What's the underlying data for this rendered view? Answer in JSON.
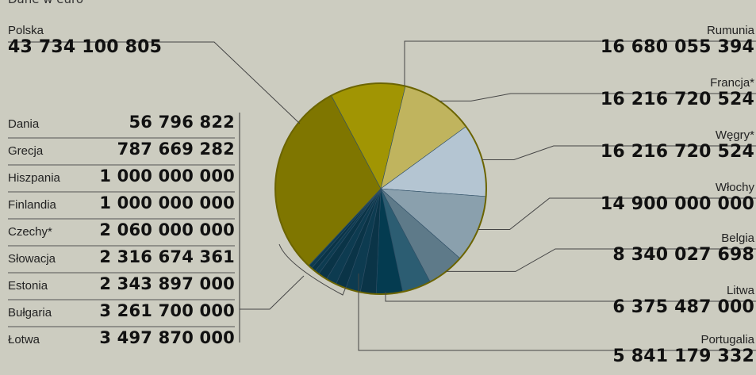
{
  "unit_note": "Dane w euro",
  "chart_data": {
    "type": "pie",
    "slices": [
      {
        "label": "Rumunia",
        "value": 16680055394,
        "display": "16 680 055 394",
        "color": "#a19503"
      },
      {
        "label": "Francja*",
        "value": 16216720524,
        "display": "16 216 720 524",
        "color": "#c0b45e"
      },
      {
        "label": "Węgry*",
        "value": 16216720524,
        "display": "16 216 720 524",
        "color": "#b4c5d2"
      },
      {
        "label": "Włochy",
        "value": 14900000000,
        "display": "14 900 000 000",
        "color": "#8aa0ad"
      },
      {
        "label": "Belgia",
        "value": 8340027698,
        "display": "8 340 027 698",
        "color": "#5e7a89"
      },
      {
        "label": "Litwa",
        "value": 6375487000,
        "display": "6 375 487 000",
        "color": "#2c5d72"
      },
      {
        "label": "Portugalia",
        "value": 5841179332,
        "display": "5 841 179 332",
        "color": "#043b50"
      },
      {
        "label": "Łotwa",
        "value": 3497870000,
        "display": "3 497 870 000",
        "color": "#0a3447"
      },
      {
        "label": "Bułgaria",
        "value": 3261700000,
        "display": "3 261 700 000",
        "color": "#0d3b50"
      },
      {
        "label": "Estonia",
        "value": 2343897000,
        "display": "2 343 897 000",
        "color": "#0a3447"
      },
      {
        "label": "Słowacja",
        "value": 2316674361,
        "display": "2 316 674 361",
        "color": "#0d3b50"
      },
      {
        "label": "Czechy*",
        "value": 2060000000,
        "display": "2 060 000 000",
        "color": "#0a3447"
      },
      {
        "label": "Finlandia",
        "value": 1000000000,
        "display": "1 000 000 000",
        "color": "#0d3b50"
      },
      {
        "label": "Hiszpania",
        "value": 1000000000,
        "display": "1 000 000 000",
        "color": "#0a3447"
      },
      {
        "label": "Grecja",
        "value": 787669282,
        "display": "787 669 282",
        "color": "#0d3b50"
      },
      {
        "label": "Dania",
        "value": 56796822,
        "display": "56 796 822",
        "color": "#0a3447"
      },
      {
        "label": "Polska",
        "value": 43734100805,
        "display": "43 734 100 805",
        "color": "#7f7600"
      }
    ]
  }
}
